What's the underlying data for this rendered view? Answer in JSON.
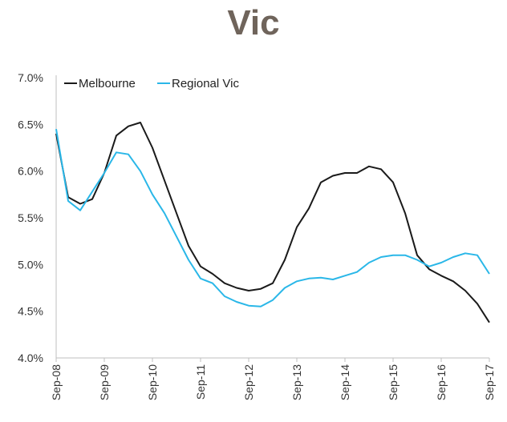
{
  "chart_data": {
    "type": "line",
    "title": "Vic",
    "xlabel": "",
    "ylabel": "",
    "x_tick_labels": [
      "Sep-08",
      "Sep-09",
      "Sep-10",
      "Sep-11",
      "Sep-12",
      "Sep-13",
      "Sep-14",
      "Sep-15",
      "Sep-16",
      "Sep-17"
    ],
    "y_tick_labels": [
      "4.0%",
      "4.5%",
      "5.0%",
      "5.5%",
      "6.0%",
      "6.5%",
      "7.0%"
    ],
    "ylim": [
      4.0,
      7.0
    ],
    "xlim": [
      "Sep-08",
      "Sep-17"
    ],
    "grid": false,
    "legend": "top-left",
    "series": [
      {
        "name": "Melbourne",
        "color": "#1a1a1a",
        "points": [
          [
            "Sep-08",
            6.4
          ],
          [
            "Dec-08",
            5.72
          ],
          [
            "Mar-09",
            5.65
          ],
          [
            "Jun-09",
            5.7
          ],
          [
            "Sep-09",
            5.98
          ],
          [
            "Dec-09",
            6.38
          ],
          [
            "Mar-10",
            6.48
          ],
          [
            "Jun-10",
            6.52
          ],
          [
            "Sep-10",
            6.25
          ],
          [
            "Dec-10",
            5.9
          ],
          [
            "Mar-11",
            5.55
          ],
          [
            "Jun-11",
            5.2
          ],
          [
            "Sep-11",
            4.98
          ],
          [
            "Dec-11",
            4.9
          ],
          [
            "Mar-12",
            4.8
          ],
          [
            "Jun-12",
            4.75
          ],
          [
            "Sep-12",
            4.72
          ],
          [
            "Dec-12",
            4.74
          ],
          [
            "Mar-13",
            4.8
          ],
          [
            "Jun-13",
            5.05
          ],
          [
            "Sep-13",
            5.4
          ],
          [
            "Dec-13",
            5.6
          ],
          [
            "Mar-14",
            5.88
          ],
          [
            "Jun-14",
            5.95
          ],
          [
            "Sep-14",
            5.98
          ],
          [
            "Dec-14",
            5.98
          ],
          [
            "Mar-15",
            6.05
          ],
          [
            "Jun-15",
            6.02
          ],
          [
            "Sep-15",
            5.88
          ],
          [
            "Dec-15",
            5.55
          ],
          [
            "Mar-16",
            5.1
          ],
          [
            "Jun-16",
            4.95
          ],
          [
            "Sep-16",
            4.88
          ],
          [
            "Dec-16",
            4.82
          ],
          [
            "Mar-17",
            4.72
          ],
          [
            "Jun-17",
            4.58
          ],
          [
            "Sep-17",
            4.38
          ]
        ]
      },
      {
        "name": "Regional Vic",
        "color": "#2ab7e8",
        "points": [
          [
            "Sep-08",
            6.45
          ],
          [
            "Dec-08",
            5.68
          ],
          [
            "Mar-09",
            5.58
          ],
          [
            "Jun-09",
            5.78
          ],
          [
            "Sep-09",
            5.98
          ],
          [
            "Dec-09",
            6.2
          ],
          [
            "Mar-10",
            6.18
          ],
          [
            "Jun-10",
            6.0
          ],
          [
            "Sep-10",
            5.75
          ],
          [
            "Dec-10",
            5.55
          ],
          [
            "Mar-11",
            5.3
          ],
          [
            "Jun-11",
            5.05
          ],
          [
            "Sep-11",
            4.85
          ],
          [
            "Dec-11",
            4.8
          ],
          [
            "Mar-12",
            4.66
          ],
          [
            "Jun-12",
            4.6
          ],
          [
            "Sep-12",
            4.56
          ],
          [
            "Dec-12",
            4.55
          ],
          [
            "Mar-13",
            4.62
          ],
          [
            "Jun-13",
            4.75
          ],
          [
            "Sep-13",
            4.82
          ],
          [
            "Dec-13",
            4.85
          ],
          [
            "Mar-14",
            4.86
          ],
          [
            "Jun-14",
            4.84
          ],
          [
            "Sep-14",
            4.88
          ],
          [
            "Dec-14",
            4.92
          ],
          [
            "Mar-15",
            5.02
          ],
          [
            "Jun-15",
            5.08
          ],
          [
            "Sep-15",
            5.1
          ],
          [
            "Dec-15",
            5.1
          ],
          [
            "Mar-16",
            5.05
          ],
          [
            "Jun-16",
            4.98
          ],
          [
            "Sep-16",
            5.02
          ],
          [
            "Dec-16",
            5.08
          ],
          [
            "Mar-17",
            5.12
          ],
          [
            "Jun-17",
            5.1
          ],
          [
            "Sep-17",
            4.9
          ]
        ]
      }
    ]
  }
}
